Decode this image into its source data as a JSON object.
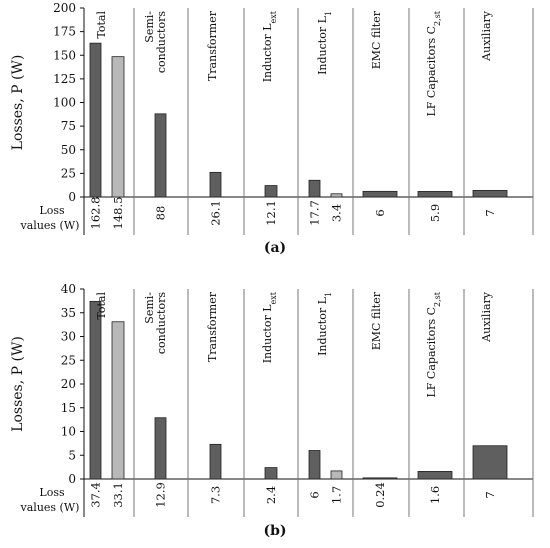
{
  "colors": {
    "dark": "#5f5f5f",
    "light": "#b8b8b8",
    "border": "#222222"
  },
  "chart_data": [
    {
      "type": "bar",
      "label": "(a)",
      "ylabel": "Losses, P (W)",
      "ylim": [
        0,
        200
      ],
      "yticks": [
        0,
        25,
        50,
        75,
        100,
        125,
        150,
        175,
        200
      ],
      "loss_label_line1": "Loss",
      "loss_label_line2": "values (W)",
      "categories": [
        {
          "lines": [
            "Total"
          ],
          "values": [
            162.8,
            148.5
          ],
          "value_labels": [
            "162.8",
            "148.5"
          ]
        },
        {
          "lines": [
            "Semi-",
            "conductors"
          ],
          "values": [
            88
          ],
          "value_labels": [
            "88"
          ]
        },
        {
          "lines": [
            "Transformer"
          ],
          "values": [
            26.1
          ],
          "value_labels": [
            "26.1"
          ]
        },
        {
          "lines": [
            "Inductor L_ext"
          ],
          "values": [
            12.1
          ],
          "value_labels": [
            "12.1"
          ]
        },
        {
          "lines": [
            "Inductor L_1"
          ],
          "values": [
            17.7,
            3.4
          ],
          "value_labels": [
            "17.7",
            "3.4"
          ]
        },
        {
          "lines": [
            "EMC filter"
          ],
          "values": [
            6
          ],
          "value_labels": [
            "6"
          ]
        },
        {
          "lines": [
            "LF Capacitors C_2,st"
          ],
          "values": [
            5.9
          ],
          "value_labels": [
            "5.9"
          ]
        },
        {
          "lines": [
            "Auxiliary"
          ],
          "values": [
            7
          ],
          "value_labels": [
            "7"
          ]
        }
      ]
    },
    {
      "type": "bar",
      "label": "(b)",
      "ylabel": "Losses, P (W)",
      "ylim": [
        0,
        40
      ],
      "yticks": [
        0,
        5,
        10,
        15,
        20,
        25,
        30,
        35,
        40
      ],
      "loss_label_line1": "Loss",
      "loss_label_line2": "values (W)",
      "categories": [
        {
          "lines": [
            "Total"
          ],
          "values": [
            37.4,
            33.1
          ],
          "value_labels": [
            "37.4",
            "33.1"
          ]
        },
        {
          "lines": [
            "Semi-",
            "conductors"
          ],
          "values": [
            12.9
          ],
          "value_labels": [
            "12.9"
          ]
        },
        {
          "lines": [
            "Transformer"
          ],
          "values": [
            7.3
          ],
          "value_labels": [
            "7.3"
          ]
        },
        {
          "lines": [
            "Inductor L_ext"
          ],
          "values": [
            2.4
          ],
          "value_labels": [
            "2.4"
          ]
        },
        {
          "lines": [
            "Inductor L_1"
          ],
          "values": [
            6,
            1.7
          ],
          "value_labels": [
            "6",
            "1.7"
          ]
        },
        {
          "lines": [
            "EMC filter"
          ],
          "values": [
            0.24
          ],
          "value_labels": [
            "0.24"
          ]
        },
        {
          "lines": [
            "LF Capacitors C_2,st"
          ],
          "values": [
            1.6
          ],
          "value_labels": [
            "1.6"
          ]
        },
        {
          "lines": [
            "Auxiliary"
          ],
          "values": [
            7
          ],
          "value_labels": [
            "7"
          ]
        }
      ]
    }
  ]
}
